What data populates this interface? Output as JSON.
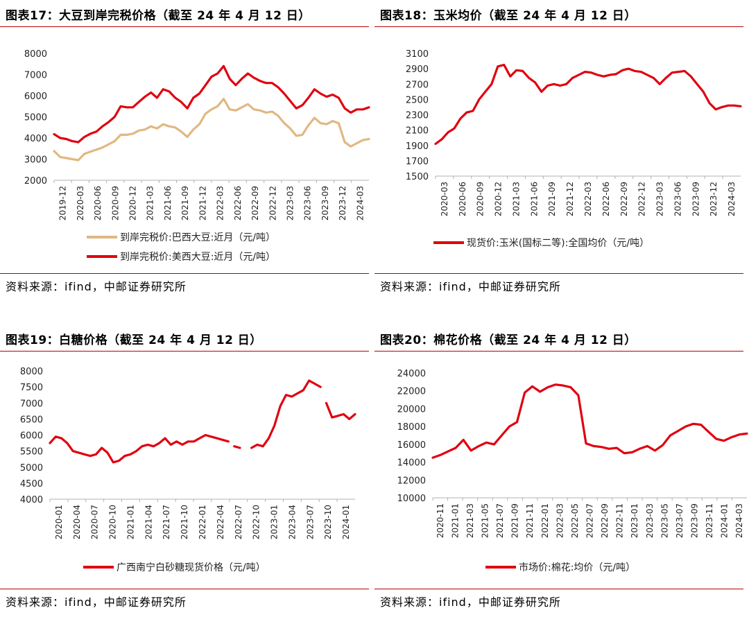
{
  "source_text": "资料来源：ifind，中邮证券研究所",
  "chart_data": [
    {
      "type": "line",
      "title": "图表17：大豆到岸完税价格（截至 24 年 4 月 12 日）",
      "ylim": [
        2000,
        8000
      ],
      "yticks": [
        2000,
        3000,
        4000,
        5000,
        6000,
        7000,
        8000
      ],
      "xlim": [
        0,
        52
      ],
      "x_tick_labels": [
        "2019-12",
        "2020-03",
        "2020-06",
        "2020-09",
        "2020-12",
        "2021-03",
        "2021-06",
        "2021-09",
        "2021-12",
        "2022-03",
        "2022-06",
        "2022-09",
        "2022-12",
        "2023-03",
        "2023-06",
        "2023-09",
        "2023-12",
        "2024-03"
      ],
      "legend_position": "bottom",
      "series": [
        {
          "name": "到岸完税价:巴西大豆:近月（元/吨）",
          "color": "#e0b882",
          "x": [
            0,
            1,
            2,
            3,
            4,
            5,
            6,
            7,
            8,
            9,
            10,
            11,
            12,
            13,
            14,
            15,
            16,
            17,
            18,
            19,
            20,
            21,
            22,
            23,
            24,
            25,
            26,
            27,
            28,
            29,
            30,
            31,
            32,
            33,
            34,
            35,
            36,
            37,
            38,
            39,
            40,
            41,
            42,
            43,
            44,
            45,
            46,
            47,
            48,
            49,
            50,
            51,
            52
          ],
          "values": [
            3380,
            3100,
            3050,
            3000,
            2950,
            3250,
            3350,
            3450,
            3550,
            3700,
            3850,
            4150,
            4150,
            4200,
            4350,
            4400,
            4550,
            4450,
            4650,
            4550,
            4500,
            4300,
            4050,
            4400,
            4650,
            5150,
            5350,
            5500,
            5850,
            5350,
            5300,
            5450,
            5600,
            5350,
            5300,
            5200,
            5250,
            5050,
            4700,
            4450,
            4100,
            4150,
            4600,
            4950,
            4700,
            4650,
            4800,
            4700,
            3800,
            3600,
            3750,
            3900,
            3950
          ]
        },
        {
          "name": "到岸完税价:美西大豆:近月（元/吨）",
          "color": "#e0000f",
          "x": [
            0,
            1,
            2,
            3,
            4,
            5,
            6,
            7,
            8,
            9,
            10,
            11,
            12,
            13,
            14,
            15,
            16,
            17,
            18,
            19,
            20,
            21,
            22,
            23,
            24,
            25,
            26,
            27,
            28,
            29,
            30,
            31,
            32,
            33,
            34,
            35,
            36,
            37,
            38,
            39,
            40,
            41,
            42,
            43,
            44,
            45,
            46,
            47,
            48,
            49,
            50,
            51,
            52
          ],
          "values": [
            4180,
            4000,
            3950,
            3850,
            3800,
            4050,
            4200,
            4300,
            4550,
            4750,
            5000,
            5500,
            5450,
            5450,
            5700,
            5950,
            6150,
            5900,
            6300,
            6200,
            5900,
            5700,
            5400,
            5900,
            6100,
            6500,
            6900,
            7050,
            7400,
            6800,
            6500,
            6800,
            7050,
            6850,
            6700,
            6600,
            6600,
            6400,
            6100,
            5750,
            5400,
            5550,
            5900,
            6300,
            6100,
            5950,
            6050,
            5900,
            5400,
            5200,
            5350,
            5350,
            5450
          ]
        }
      ]
    },
    {
      "type": "line",
      "title": "图表18：玉米均价（截至 24 年 4 月 12 日）",
      "ylim": [
        1500,
        3100
      ],
      "yticks": [
        1500,
        1700,
        1900,
        2100,
        2300,
        2500,
        2700,
        2900,
        3100
      ],
      "xlim": [
        0,
        49
      ],
      "x_tick_labels": [
        "2020-03",
        "2020-06",
        "2020-09",
        "2020-12",
        "2021-03",
        "2021-06",
        "2021-09",
        "2021-12",
        "2022-03",
        "2022-06",
        "2022-09",
        "2022-12",
        "2023-03",
        "2023-06",
        "2023-09",
        "2023-12",
        "2024-03"
      ],
      "legend_position": "bottom",
      "series": [
        {
          "name": "现货价:玉米(国标二等):全国均价（元/吨）",
          "color": "#e0000f",
          "x": [
            0,
            1,
            2,
            3,
            4,
            5,
            6,
            7,
            8,
            9,
            10,
            11,
            12,
            13,
            14,
            15,
            16,
            17,
            18,
            19,
            20,
            21,
            22,
            23,
            24,
            25,
            26,
            27,
            28,
            29,
            30,
            31,
            32,
            33,
            34,
            35,
            36,
            37,
            38,
            39,
            40,
            41,
            42,
            43,
            44,
            45,
            46,
            47,
            48,
            49
          ],
          "values": [
            1920,
            1980,
            2070,
            2120,
            2250,
            2330,
            2350,
            2500,
            2600,
            2700,
            2930,
            2950,
            2800,
            2880,
            2870,
            2780,
            2720,
            2600,
            2680,
            2700,
            2680,
            2700,
            2780,
            2820,
            2860,
            2850,
            2820,
            2800,
            2820,
            2830,
            2880,
            2900,
            2870,
            2860,
            2820,
            2780,
            2700,
            2780,
            2850,
            2860,
            2870,
            2800,
            2700,
            2600,
            2450,
            2370,
            2400,
            2420,
            2420,
            2410
          ]
        }
      ]
    },
    {
      "type": "line",
      "title": "图表19：白糖价格（截至 24 年 4 月 12 日）",
      "ylim": [
        4000,
        8000
      ],
      "yticks": [
        4000,
        4500,
        5000,
        5500,
        6000,
        6500,
        7000,
        7500,
        8000
      ],
      "xlim": [
        0,
        53
      ],
      "x_tick_labels": [
        "2020-01",
        "2020-04",
        "2020-07",
        "2020-10",
        "2021-01",
        "2021-04",
        "2021-07",
        "2021-10",
        "2022-01",
        "2022-04",
        "2022-07",
        "2022-10",
        "2023-01",
        "2023-04",
        "2023-07",
        "2023-10",
        "2024-01"
      ],
      "legend_position": "bottom",
      "series": [
        {
          "name": "广西南宁白砂糖现货价格（元/吨）",
          "color": "#e0000f",
          "segments": [
            {
              "x": [
                0,
                1,
                2,
                3,
                4,
                5,
                6,
                7,
                8,
                9,
                10,
                11,
                12,
                13,
                14,
                15,
                16,
                17,
                18,
                19,
                20,
                21,
                22,
                23,
                24,
                25,
                26,
                27,
                28,
                29,
                30,
                31
              ],
              "values": [
                5750,
                5950,
                5900,
                5750,
                5500,
                5450,
                5400,
                5350,
                5400,
                5600,
                5450,
                5150,
                5200,
                5350,
                5400,
                5500,
                5650,
                5700,
                5650,
                5750,
                5900,
                5700,
                5800,
                5700,
                5800,
                5800,
                5900,
                6000,
                5950,
                5900,
                5850,
                5800
              ]
            },
            {
              "x": [
                32,
                33
              ],
              "values": [
                5650,
                5600
              ]
            },
            {
              "x": [
                35,
                36,
                37,
                38,
                39,
                40,
                41,
                42,
                43,
                44,
                45,
                46,
                47
              ],
              "values": [
                5600,
                5700,
                5650,
                5900,
                6300,
                6900,
                7250,
                7200,
                7300,
                7400,
                7700,
                7600,
                7500
              ]
            },
            {
              "x": [
                48,
                49,
                50,
                51,
                52,
                53
              ],
              "values": [
                7000,
                6550,
                6600,
                6650,
                6500,
                6650
              ]
            }
          ]
        }
      ]
    },
    {
      "type": "line",
      "title": "图表20：棉花价格（截至 24 年 4 月 12 日）",
      "ylim": [
        10000,
        24000
      ],
      "yticks": [
        10000,
        12000,
        14000,
        16000,
        18000,
        20000,
        22000,
        24000
      ],
      "xlim": [
        0,
        41
      ],
      "x_tick_labels": [
        "2020-11",
        "2021-01",
        "2021-03",
        "2021-05",
        "2021-07",
        "2021-09",
        "2021-11",
        "2022-01",
        "2022-03",
        "2022-05",
        "2022-07",
        "2022-09",
        "2022-11",
        "2023-01",
        "2023-03",
        "2023-05",
        "2023-07",
        "2023-09",
        "2023-11",
        "2024-01",
        "2024-03"
      ],
      "legend_position": "bottom",
      "series": [
        {
          "name": "市场价:棉花:均价（元/吨）",
          "color": "#e0000f",
          "x": [
            0,
            1,
            2,
            3,
            4,
            5,
            6,
            7,
            8,
            9,
            10,
            11,
            12,
            13,
            14,
            15,
            16,
            17,
            18,
            19,
            20,
            21,
            22,
            23,
            24,
            25,
            26,
            27,
            28,
            29,
            30,
            31,
            32,
            33,
            34,
            35,
            36,
            37,
            38,
            39,
            40,
            41
          ],
          "values": [
            14500,
            14800,
            15200,
            15600,
            16500,
            15300,
            15800,
            16200,
            16000,
            17000,
            18000,
            18500,
            21800,
            22500,
            21900,
            22400,
            22700,
            22600,
            22400,
            21500,
            16100,
            15800,
            15700,
            15500,
            15600,
            15000,
            15100,
            15500,
            15800,
            15300,
            15900,
            17000,
            17500,
            18000,
            18300,
            18200,
            17400,
            16600,
            16400,
            16800,
            17100,
            17200
          ]
        }
      ]
    }
  ]
}
